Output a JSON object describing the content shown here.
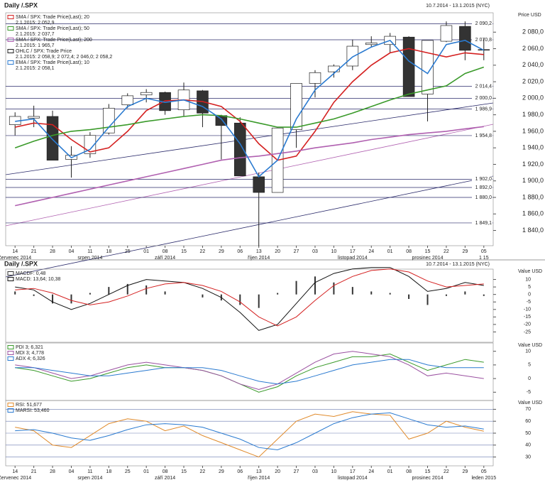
{
  "chart_data": [
    {
      "type": "candlestick",
      "title": "Daily /.SPX",
      "date_range": "10.7.2014 - 13.1.2015 (NYC)",
      "ylabel": "Price USD",
      "categories": [
        "14",
        "21",
        "28",
        "04",
        "11",
        "18",
        "25",
        "01",
        "08",
        "15",
        "22",
        "29",
        "06",
        "13",
        "20",
        "27",
        "03",
        "10",
        "17",
        "24",
        "01",
        "08",
        "15",
        "22",
        "29",
        "05"
      ],
      "month_labels": [
        "červenec 2014",
        null,
        null,
        null,
        "srpen 2014",
        null,
        null,
        null,
        "září 2014",
        null,
        null,
        null,
        null,
        "říjen 2014",
        null,
        null,
        null,
        null,
        "listopad 2014",
        null,
        null,
        null,
        "prosinec 2014",
        null,
        null,
        "1 15"
      ],
      "ylim": [
        1825,
        2100
      ],
      "yticks": [
        {
          "value": 1840,
          "label": "1 840,0"
        },
        {
          "value": 1860,
          "label": "1 860,0"
        },
        {
          "value": 1880,
          "label": "1 880,0"
        },
        {
          "value": 1900,
          "label": "1 900,0"
        },
        {
          "value": 1920,
          "label": "1 920,0"
        },
        {
          "value": 1940,
          "label": "1 940,0"
        },
        {
          "value": 1960,
          "label": "1 960,0"
        },
        {
          "value": 1980,
          "label": "1 980,0"
        },
        {
          "value": 2000,
          "label": "2 000,0"
        },
        {
          "value": 2020,
          "label": "2 020,0"
        },
        {
          "value": 2040,
          "label": "2 040,0"
        },
        {
          "value": 2060,
          "label": "2 060,0"
        },
        {
          "value": 2080,
          "label": "2 080,0"
        }
      ],
      "levels": [
        {
          "value": 2090.2,
          "label": "2 090,2"
        },
        {
          "value": 2070.8,
          "label": "2 070,8"
        },
        {
          "value": 2014.4,
          "label": "2 014,4"
        },
        {
          "value": 2000,
          "label": "2 000,0"
        },
        {
          "value": 1986.9,
          "label": "1 986,9"
        },
        {
          "value": 1954.8,
          "label": "1 954,8"
        },
        {
          "value": 1902,
          "label": "1 902,0"
        },
        {
          "value": 1892,
          "label": "1 892,0"
        },
        {
          "value": 1880,
          "label": "1 880,0"
        },
        {
          "value": 1849.1,
          "label": "1 849,1"
        }
      ],
      "level_color": "#2a2a6a",
      "candles": {
        "name": "OHLC / SPX: Trade Price",
        "last": "2.1.2015: 2 058,9; 2 072,4; 2 046,0; 2 058,2",
        "up_color": "#ffffff",
        "down_color": "#333333",
        "open": [
          1968,
          1976,
          1978,
          1926,
          1933,
          1958,
          1992,
          2004,
          2007,
          1986,
          2009,
          1979,
          1970,
          1905,
          1886,
          1962,
          2018,
          2032,
          2039,
          2065,
          2065,
          2074,
          2005,
          2069,
          2087,
          2058.9
        ],
        "high": [
          1983,
          1991,
          1985,
          1942,
          1959,
          1993,
          2006,
          2011,
          2008,
          2019,
          2010,
          1980,
          1977,
          1910,
          1965,
          2018,
          2034,
          2041,
          2071,
          2075,
          2079,
          2075,
          2070,
          2093,
          2093,
          2072.4
        ],
        "low": [
          1955,
          1965,
          1927,
          1904,
          1928,
          1956,
          1988,
          1995,
          1980,
          1978,
          1965,
          1926,
          1906,
          1821,
          1886,
          1940,
          2001,
          2025,
          2034,
          2062,
          2055,
          2002,
          1972,
          2068,
          2046,
          2046
        ],
        "close": [
          1978,
          1978,
          1925,
          1931,
          1955,
          1988,
          2003,
          2007,
          1985,
          2010,
          1982,
          1967,
          1906,
          1886,
          1964,
          2018,
          2031,
          2039,
          2063,
          2067,
          2075,
          2002,
          2070,
          2088,
          2058,
          2058.2
        ]
      },
      "series": [
        {
          "name": "SMA / SPX: Trade Price(Last); 20",
          "last": "2.1.2015: 2 052,9",
          "color": "#d42020",
          "values": [
            1965,
            1970,
            1968,
            1950,
            1935,
            1940,
            1960,
            1985,
            1997,
            1998,
            1996,
            1990,
            1972,
            1945,
            1925,
            1930,
            1960,
            1995,
            2020,
            2040,
            2055,
            2060,
            2055,
            2050,
            2055,
            2052.9
          ]
        },
        {
          "name": "SMA / SPX: Trade Price(Last); 50",
          "last": "2.1.2015: 2 037,7",
          "color": "#3a9a2a",
          "values": [
            1940,
            1948,
            1955,
            1960,
            1962,
            1965,
            1968,
            1972,
            1975,
            1978,
            1980,
            1979,
            1975,
            1970,
            1965,
            1965,
            1970,
            1975,
            1982,
            1990,
            1998,
            2005,
            2010,
            2015,
            2030,
            2037.7
          ]
        },
        {
          "name": "SMA / SPX: Trade Price(Last); 200",
          "last": "2.1.2015: 1 965,7",
          "color": "#b060b0",
          "values": [
            1870,
            1875,
            1880,
            1885,
            1890,
            1895,
            1900,
            1905,
            1910,
            1915,
            1920,
            1925,
            1928,
            1930,
            1933,
            1936,
            1940,
            1943,
            1946,
            1950,
            1953,
            1956,
            1958,
            1960,
            1963,
            1965.7
          ]
        },
        {
          "name": "EMA / SPX: Trade Price(Last); 10",
          "last": "2.1.2015: 2 058,1",
          "color": "#2a7ad0",
          "values": [
            1972,
            1975,
            1950,
            1928,
            1938,
            1965,
            1990,
            2000,
            1995,
            1998,
            1990,
            1975,
            1945,
            1905,
            1925,
            1975,
            2010,
            2030,
            2050,
            2062,
            2070,
            2045,
            2030,
            2065,
            2070,
            2058.1
          ]
        }
      ]
    },
    {
      "type": "line",
      "title": "Daily /.SPX",
      "date_range": "10.7.2014 - 13.1.2015 (NYC)",
      "ylabel": "Value USD",
      "ylim": [
        -30,
        15
      ],
      "yticks": [
        10,
        5,
        0,
        -5,
        -10,
        -15,
        -20,
        -25
      ],
      "series": [
        {
          "name": "MACDF: 0,48",
          "style": "bar",
          "color": "#333333",
          "values": [
            2,
            -1,
            -6,
            -6,
            1,
            5,
            7,
            6,
            2,
            0,
            -2,
            -4,
            -7,
            -9,
            1,
            9,
            12,
            8,
            5,
            2,
            1,
            -3,
            -7,
            -1,
            2,
            -1
          ]
        },
        {
          "name": "MACD: 13,64; 10,38",
          "color": "#111111",
          "values": [
            5,
            3,
            -5,
            -10,
            -6,
            0,
            6,
            10,
            9,
            8,
            4,
            -2,
            -12,
            -24,
            -20,
            -6,
            8,
            14,
            17,
            18,
            18,
            12,
            2,
            4,
            8,
            6
          ]
        },
        {
          "color": "#d42020",
          "values": [
            3,
            4,
            1,
            -4,
            -7,
            -5,
            -1,
            4,
            7,
            8,
            6,
            2,
            -5,
            -15,
            -21,
            -15,
            -4,
            6,
            12,
            16,
            17,
            15,
            9,
            5,
            6,
            7
          ]
        }
      ]
    },
    {
      "type": "line",
      "ylabel": "Value USD",
      "ylim": [
        -7,
        12
      ],
      "yticks": [
        10,
        5,
        0,
        -5
      ],
      "series": [
        {
          "name": "PDI 3; 6,321",
          "color": "#3a9a2a",
          "values": [
            4,
            3,
            1,
            -1,
            0,
            2,
            4,
            5,
            4,
            4,
            3,
            1,
            -2,
            -5,
            -3,
            1,
            4,
            6,
            8,
            8,
            9,
            6,
            3,
            5,
            7,
            6
          ]
        },
        {
          "name": "MDI 3; 4,778",
          "color": "#9a50a0",
          "values": [
            5,
            4,
            2,
            0,
            1,
            3,
            5,
            6,
            5,
            4,
            3,
            1,
            -2,
            -4,
            -2,
            2,
            6,
            9,
            10,
            9,
            8,
            5,
            1,
            2,
            1,
            0
          ]
        },
        {
          "name": "ADX 4; 6,326",
          "color": "#2a7ad0",
          "values": [
            4,
            4,
            3,
            2,
            1,
            1,
            2,
            3,
            4,
            4,
            4,
            3,
            1,
            -1,
            -2,
            -1,
            1,
            3,
            5,
            6,
            7,
            7,
            5,
            4,
            4,
            4
          ]
        }
      ]
    },
    {
      "type": "line",
      "ylabel": "Value USD",
      "categories": [
        "14",
        "21",
        "28",
        "04",
        "11",
        "18",
        "25",
        "01",
        "08",
        "15",
        "22",
        "29",
        "06",
        "13",
        "20",
        "27",
        "03",
        "10",
        "17",
        "24",
        "01",
        "08",
        "15",
        "22",
        "29",
        "05"
      ],
      "month_labels": [
        "červenec 2014",
        null,
        null,
        null,
        "srpen 2014",
        null,
        null,
        null,
        "září 2014",
        null,
        null,
        null,
        null,
        "říjen 2014",
        null,
        null,
        null,
        null,
        "listopad 2014",
        null,
        null,
        null,
        "prosinec 2014",
        null,
        null,
        "leden 2015"
      ],
      "ylim": [
        25,
        75
      ],
      "yticks": [
        70,
        60,
        50,
        40,
        30
      ],
      "grid": true,
      "series": [
        {
          "name": "RSI: 51,677",
          "color": "#e08a2a",
          "values": [
            55,
            52,
            40,
            38,
            48,
            58,
            62,
            60,
            52,
            56,
            48,
            42,
            36,
            30,
            45,
            60,
            66,
            64,
            68,
            66,
            65,
            45,
            50,
            60,
            55,
            51.677
          ]
        },
        {
          "name": "MARSI: 53,460",
          "color": "#2a7ad0",
          "values": [
            52,
            53,
            50,
            46,
            44,
            48,
            53,
            57,
            58,
            57,
            55,
            50,
            45,
            38,
            36,
            42,
            50,
            58,
            63,
            66,
            67,
            62,
            57,
            55,
            56,
            53.46
          ]
        }
      ]
    }
  ]
}
